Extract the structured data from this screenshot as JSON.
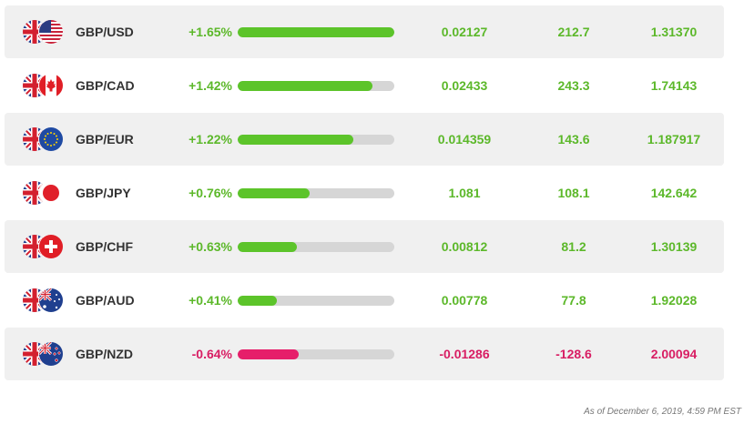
{
  "colors": {
    "positive": "#5cc42a",
    "negative": "#e61e6a",
    "track": "#d6d6d6"
  },
  "rows": [
    {
      "pair": "GBP/USD",
      "change_pct": "+1.65%",
      "bar_fraction": 1.0,
      "direction": "positive",
      "abs_change": "0.02127",
      "pips": "212.7",
      "rate": "1.31370",
      "quote_flag": "us-flag-icon"
    },
    {
      "pair": "GBP/CAD",
      "change_pct": "+1.42%",
      "bar_fraction": 0.86,
      "direction": "positive",
      "abs_change": "0.02433",
      "pips": "243.3",
      "rate": "1.74143",
      "quote_flag": "ca-flag-icon"
    },
    {
      "pair": "GBP/EUR",
      "change_pct": "+1.22%",
      "bar_fraction": 0.74,
      "direction": "positive",
      "abs_change": "0.014359",
      "pips": "143.6",
      "rate": "1.187917",
      "quote_flag": "eu-flag-icon"
    },
    {
      "pair": "GBP/JPY",
      "change_pct": "+0.76%",
      "bar_fraction": 0.46,
      "direction": "positive",
      "abs_change": "1.081",
      "pips": "108.1",
      "rate": "142.642",
      "quote_flag": "jp-flag-icon"
    },
    {
      "pair": "GBP/CHF",
      "change_pct": "+0.63%",
      "bar_fraction": 0.38,
      "direction": "positive",
      "abs_change": "0.00812",
      "pips": "81.2",
      "rate": "1.30139",
      "quote_flag": "ch-flag-icon"
    },
    {
      "pair": "GBP/AUD",
      "change_pct": "+0.41%",
      "bar_fraction": 0.25,
      "direction": "positive",
      "abs_change": "0.00778",
      "pips": "77.8",
      "rate": "1.92028",
      "quote_flag": "au-flag-icon"
    },
    {
      "pair": "GBP/NZD",
      "change_pct": "-0.64%",
      "bar_fraction": 0.39,
      "direction": "negative",
      "abs_change": "-0.01286",
      "pips": "-128.6",
      "rate": "2.00094",
      "quote_flag": "nz-flag-icon"
    }
  ],
  "footer": {
    "timestamp": "As of December 6, 2019, 4:59 PM EST"
  }
}
